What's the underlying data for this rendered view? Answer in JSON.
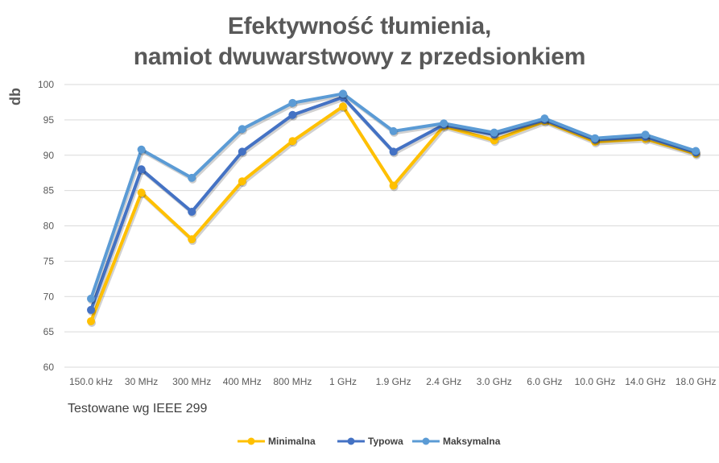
{
  "chart_data": {
    "type": "line",
    "title": [
      "Efektywność tłumienia,",
      "namiot dwuwarstwowy z przedsionkiem"
    ],
    "ylabel": "db",
    "note": "Testowane wg IEEE 299",
    "ylim": [
      60,
      100
    ],
    "yticks": [
      60,
      65,
      70,
      75,
      80,
      85,
      90,
      95,
      100
    ],
    "grid": true,
    "legend_position": "bottom",
    "categories": [
      "150.0 kHz",
      "30 MHz",
      "300 MHz",
      "400 MHz",
      "800 MHz",
      "1 GHz",
      "1.9 GHz",
      "2.4 GHz",
      "3.0 GHz",
      "6.0 GHz",
      "10.0 GHz",
      "14.0 GHz",
      "18.0 GHz"
    ],
    "series": [
      {
        "name": "Minimalna",
        "color": "#FFC000",
        "values": [
          66.5,
          84.7,
          78.1,
          86.3,
          92.0,
          96.9,
          85.7,
          94.1,
          92.1,
          94.8,
          91.9,
          92.3,
          90.2
        ]
      },
      {
        "name": "Typowa",
        "color": "#4472C4",
        "values": [
          68.1,
          88.0,
          82.0,
          90.5,
          95.7,
          98.2,
          90.5,
          94.3,
          92.9,
          95.0,
          92.2,
          92.6,
          90.4
        ]
      },
      {
        "name": "Maksymalna",
        "color": "#5B9BD5",
        "values": [
          69.7,
          90.8,
          86.8,
          93.7,
          97.4,
          98.7,
          93.4,
          94.5,
          93.2,
          95.2,
          92.4,
          92.9,
          90.6
        ]
      }
    ]
  }
}
